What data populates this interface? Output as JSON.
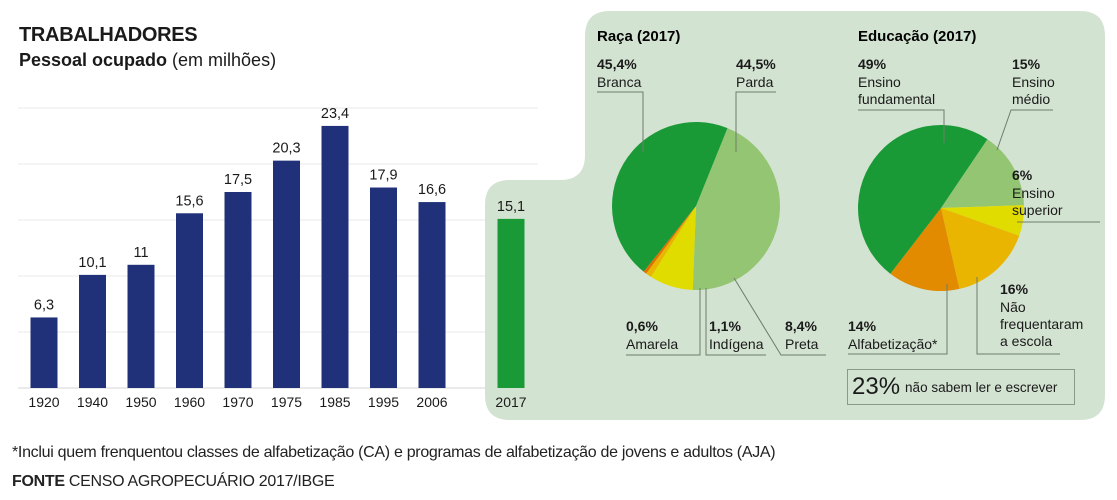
{
  "title": "TRABALHADORES",
  "subtitle_bold": "Pessoal ocupado",
  "subtitle_rest": " (em milhões)",
  "colors": {
    "bar_historic": "#20317a",
    "bar_highlight": "#1a9a36",
    "panel_bg": "#d3e3d1",
    "green_dark": "#1a9a36",
    "green_light": "#93c572",
    "yellow": "#e0dc00",
    "orange_light": "#e9b500",
    "orange": "#e28a00",
    "orange_red": "#e07000"
  },
  "chart_data": [
    {
      "type": "bar",
      "title": "TRABALHADORES",
      "subtitle": "Pessoal ocupado (em milhões)",
      "xlabel": "",
      "ylabel": "",
      "categories": [
        "1920",
        "1940",
        "1950",
        "1960",
        "1970",
        "1975",
        "1985",
        "1995",
        "2006",
        "2017"
      ],
      "values": [
        6.3,
        10.1,
        11,
        15.6,
        17.5,
        20.3,
        23.4,
        17.9,
        16.6,
        15.1
      ],
      "value_labels": [
        "6,3",
        "10,1",
        "11",
        "15,6",
        "17,5",
        "20,3",
        "23,4",
        "17,9",
        "16,6",
        "15,1"
      ],
      "highlight_category": "2017",
      "ylim": [
        0,
        25
      ],
      "grid": true,
      "gridlines": [
        0,
        5,
        10,
        15,
        20,
        25
      ]
    },
    {
      "type": "pie",
      "title": "Raça (2017)",
      "slices": [
        {
          "label": "Parda",
          "value": 44.5,
          "value_label": "44,5%",
          "color": "#93c572"
        },
        {
          "label": "Preta",
          "value": 8.4,
          "value_label": "8,4%",
          "color": "#e0dc00"
        },
        {
          "label": "Indígena",
          "value": 1.1,
          "value_label": "1,1%",
          "color": "#e9b500"
        },
        {
          "label": "Amarela",
          "value": 0.6,
          "value_label": "0,6%",
          "color": "#e07000"
        },
        {
          "label": "Branca",
          "value": 45.4,
          "value_label": "45,4%",
          "color": "#1a9a36"
        }
      ]
    },
    {
      "type": "pie",
      "title": "Educação (2017)",
      "slices": [
        {
          "label": "Ensino médio",
          "label_lines": [
            "Ensino",
            "médio"
          ],
          "value": 15,
          "value_label": "15%",
          "color": "#93c572"
        },
        {
          "label": "Ensino superior",
          "label_lines": [
            "Ensino",
            "superior"
          ],
          "value": 6,
          "value_label": "6%",
          "color": "#e0dc00"
        },
        {
          "label": "Não frequentaram a escola",
          "label_lines": [
            "Não",
            "frequentaram",
            "a escola"
          ],
          "value": 16,
          "value_label": "16%",
          "color": "#e9b500"
        },
        {
          "label": "Alfabetização*",
          "label_lines": [
            "Alfabetização*"
          ],
          "value": 14,
          "value_label": "14%",
          "color": "#e28a00"
        },
        {
          "label": "Ensino fundamental",
          "label_lines": [
            "Ensino",
            "fundamental"
          ],
          "value": 49,
          "value_label": "49%",
          "color": "#1a9a36"
        }
      ]
    }
  ],
  "summary": {
    "big": "23%",
    "text": "não sabem ler e escrever"
  },
  "footnote": "*Inclui quem frenquentou classes de alfabetização (CA) e programas de alfabetização de jovens e adultos (AJA)",
  "source_bold": "FONTE",
  "source_rest": " CENSO AGROPECUÁRIO 2017/IBGE"
}
